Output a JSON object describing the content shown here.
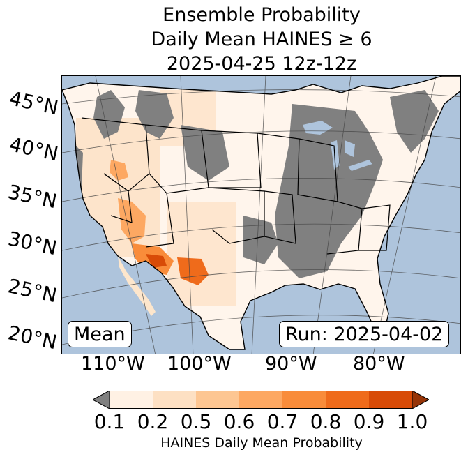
{
  "title": {
    "line1": "Ensemble Probability",
    "line2": "Daily Mean HAINES ≥ 6",
    "line3": "2025-04-25 12z-12z"
  },
  "lat_labels": [
    "45°N",
    "40°N",
    "35°N",
    "30°N",
    "25°N",
    "20°N"
  ],
  "lon_labels": [
    "110°W",
    "100°W",
    "90°W",
    "80°W"
  ],
  "stat_box": "Mean",
  "run_box": "Run: 2025-04-02",
  "colorbar": {
    "label": "HAINES Daily Mean Probability",
    "ticks": [
      "0.1",
      "0.2",
      "0.5",
      "0.6",
      "0.7",
      "0.8",
      "0.9",
      "1.0"
    ],
    "under_color": "#808080",
    "colors": [
      "#fff1e4",
      "#fde0c3",
      "#fdc692",
      "#fda862",
      "#f98c3a",
      "#ef6b1b",
      "#d84b07"
    ],
    "over_color": "#963407"
  },
  "colors": {
    "ocean": "#aec4dc",
    "land_none": "#ffffff",
    "land_low": "#808080"
  }
}
